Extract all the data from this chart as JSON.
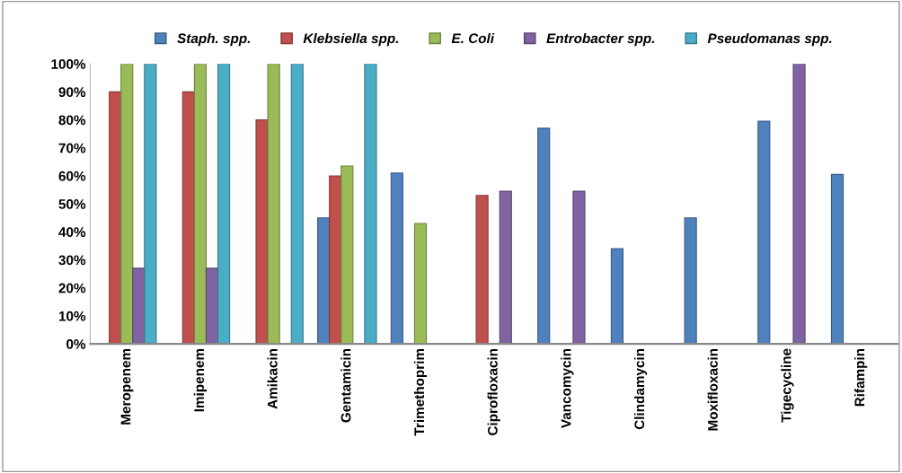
{
  "chart_data": {
    "type": "bar",
    "categories": [
      "Meropenem",
      "Imipenem",
      "Amikacin",
      "Gentamicin",
      "Trimethoprim",
      "Ciprofloxacin",
      "Vancomycin",
      "Clindamycin",
      "Moxifloxacin",
      "Tigecycline",
      "Rifampin"
    ],
    "series": [
      {
        "name": "Staph. spp.",
        "color": "#4f81bd",
        "values": [
          null,
          null,
          null,
          45,
          61,
          null,
          77,
          34,
          45,
          79.5,
          60.5
        ]
      },
      {
        "name": "Klebsiella spp.",
        "color": "#c0504d",
        "values": [
          90,
          90,
          80,
          60,
          null,
          53,
          null,
          null,
          null,
          null,
          null
        ]
      },
      {
        "name": "E. Coli",
        "color": "#9bbb59",
        "values": [
          100,
          100,
          100,
          63.5,
          43,
          null,
          null,
          null,
          null,
          null,
          null
        ]
      },
      {
        "name": "Entrobacter spp.",
        "color": "#8064a2",
        "values": [
          27,
          27,
          null,
          null,
          null,
          54.5,
          54.5,
          null,
          null,
          100,
          null
        ]
      },
      {
        "name": "Pseudomanas spp.",
        "color": "#4bacc6",
        "values": [
          100,
          100,
          100,
          100,
          null,
          null,
          null,
          null,
          null,
          null,
          null
        ]
      }
    ],
    "ylim": [
      0,
      100
    ],
    "yticks": [
      {
        "value": 0,
        "label": "0%"
      },
      {
        "value": 10,
        "label": "10%"
      },
      {
        "value": 20,
        "label": "20%"
      },
      {
        "value": 30,
        "label": "30%"
      },
      {
        "value": 40,
        "label": "40%"
      },
      {
        "value": 50,
        "label": "50%"
      },
      {
        "value": 60,
        "label": "60%"
      },
      {
        "value": 70,
        "label": "70%"
      },
      {
        "value": 80,
        "label": "80%"
      },
      {
        "value": 90,
        "label": "90%"
      },
      {
        "value": 100,
        "label": "100%"
      }
    ],
    "legend": "top",
    "grid": false
  }
}
